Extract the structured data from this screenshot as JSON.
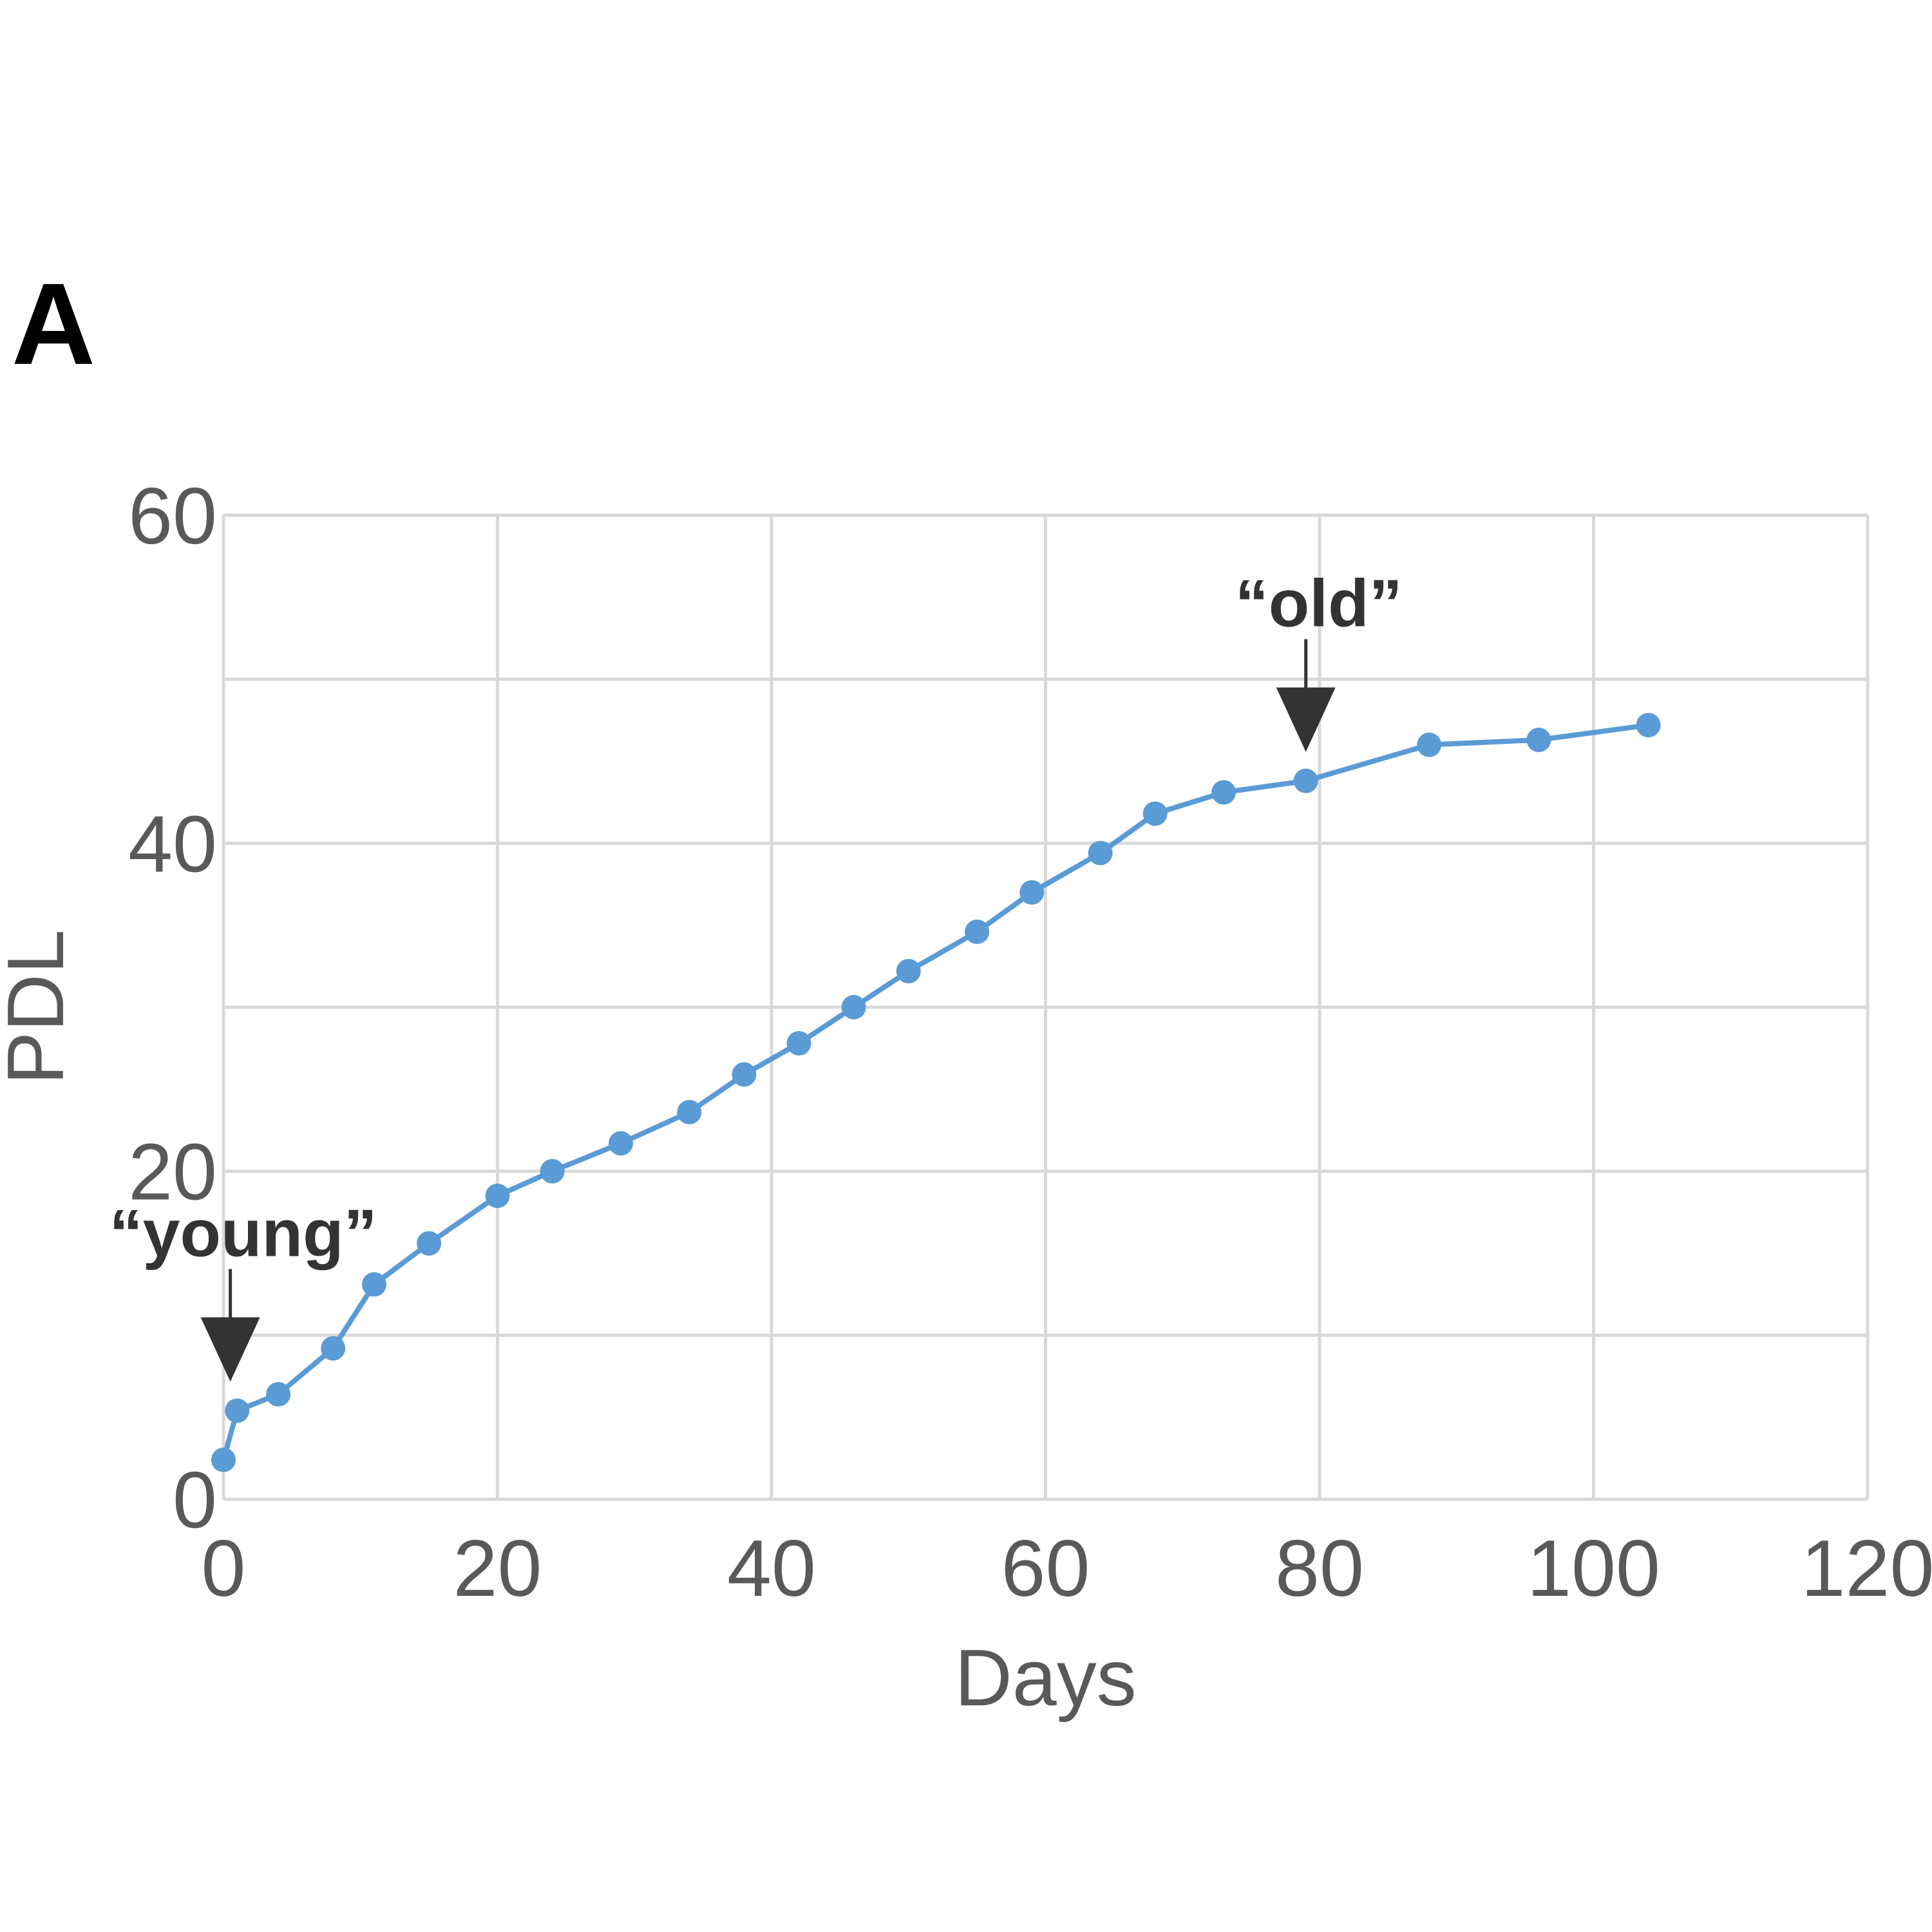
{
  "panel_label": "A",
  "colors": {
    "series": "#5b9bd5",
    "grid": "#d9d9d9",
    "tick_text": "#595959",
    "annotation": "#333333"
  },
  "chart_data": {
    "type": "line",
    "title": "",
    "xlabel": "Days",
    "ylabel": "PDL",
    "xlim": [
      0,
      120
    ],
    "ylim": [
      0,
      60
    ],
    "xticks": [
      0,
      20,
      40,
      60,
      80,
      100,
      120
    ],
    "yticks": [
      0,
      20,
      40,
      60
    ],
    "y_gridlines": [
      0,
      10,
      20,
      30,
      40,
      50,
      60
    ],
    "grid": true,
    "legend": "none",
    "series": [
      {
        "x": [
          0,
          1,
          4,
          8,
          11,
          15,
          20,
          24,
          29,
          34,
          38,
          42,
          46,
          50,
          55,
          59,
          64,
          68,
          73,
          79,
          88,
          96,
          104
        ],
        "y": [
          2.4,
          5.4,
          6.4,
          9.2,
          13.1,
          15.6,
          18.5,
          20.0,
          21.7,
          23.6,
          25.9,
          27.8,
          30.0,
          32.2,
          34.6,
          37.0,
          39.4,
          41.8,
          43.1,
          43.8,
          46.0,
          46.3,
          47.2
        ]
      }
    ],
    "annotations": [
      {
        "text": "“young”",
        "x": 0.5,
        "y": 5.4
      },
      {
        "text": "“old”",
        "x": 79,
        "y": 43.8
      }
    ]
  }
}
